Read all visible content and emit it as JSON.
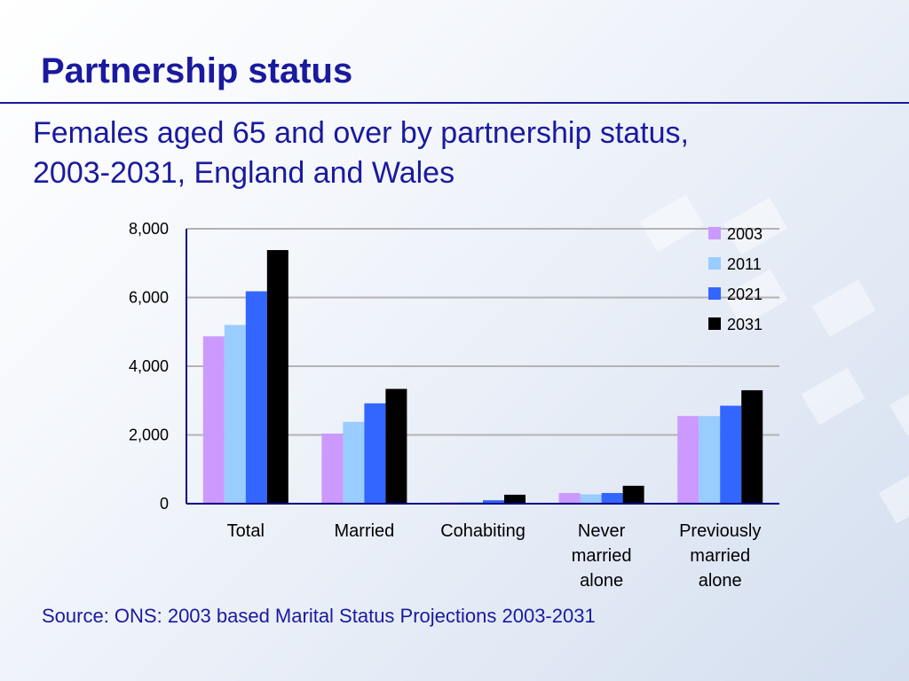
{
  "slide": {
    "title": "Partnership status",
    "heading_line1": "Females aged 65 and over by partnership status,",
    "heading_line2": "2003-2031, England and Wales",
    "source": "Source: ONS: 2003 based Marital Status Projections 2003-2031"
  },
  "chart_data": {
    "type": "bar",
    "title": "",
    "xlabel": "",
    "ylabel": "",
    "ylim": [
      0,
      8000
    ],
    "yticks": [
      0,
      2000,
      4000,
      6000,
      8000
    ],
    "ytick_labels": [
      "0",
      "2,000",
      "4,000",
      "6,000",
      "8,000"
    ],
    "grid": true,
    "legend_position": "top-right",
    "categories": [
      [
        "Total"
      ],
      [
        "Married"
      ],
      [
        "Cohabiting"
      ],
      [
        "Never",
        "married",
        "alone"
      ],
      [
        "Previously",
        "married",
        "alone"
      ]
    ],
    "series": [
      {
        "name": "2003",
        "color": "#cc99ff",
        "values": [
          4870,
          2040,
          40,
          310,
          2550
        ]
      },
      {
        "name": "2011",
        "color": "#99ccff",
        "values": [
          5200,
          2380,
          50,
          270,
          2550
        ]
      },
      {
        "name": "2021",
        "color": "#3366ff",
        "values": [
          6180,
          2920,
          100,
          310,
          2850
        ]
      },
      {
        "name": "2031",
        "color": "#000000",
        "values": [
          7380,
          3340,
          260,
          520,
          3300
        ]
      }
    ]
  }
}
